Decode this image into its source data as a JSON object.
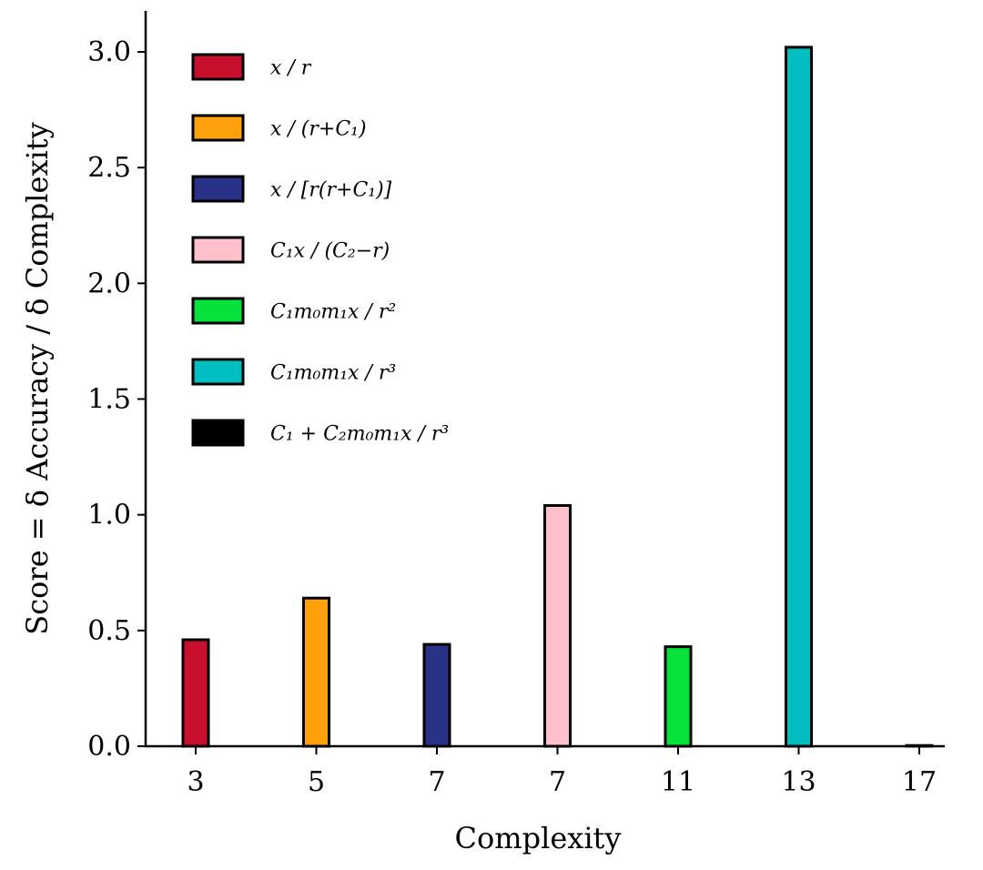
{
  "chart_data": {
    "type": "bar",
    "title": "",
    "xlabel": "Complexity",
    "ylabel": "Score = δ Accuracy / δ Complexity",
    "ylim": [
      0,
      3.15
    ],
    "yticks": [
      0.0,
      0.5,
      1.0,
      1.5,
      2.0,
      2.5,
      3.0
    ],
    "ytick_labels": [
      "0.0",
      "0.5",
      "1.0",
      "1.5",
      "2.0",
      "2.5",
      "3.0"
    ],
    "categories": [
      "3",
      "5",
      "7",
      "7",
      "11",
      "13",
      "17"
    ],
    "values": [
      0.46,
      0.64,
      0.44,
      1.04,
      0.43,
      3.02,
      0.0
    ],
    "colors": [
      "#c8102e",
      "#ffa10a",
      "#2a3189",
      "#ffc0cb",
      "#07e13b",
      "#01bfc0",
      "#000000"
    ],
    "legend": {
      "placement": "top-left",
      "entries": [
        {
          "label": "x / r",
          "color": "#c8102e"
        },
        {
          "label": "x / (r+C₁)",
          "color": "#ffa10a"
        },
        {
          "label": "x / [r(r+C₁)]",
          "color": "#2a3189"
        },
        {
          "label": "C₁x / (C₂−r)",
          "color": "#ffc0cb"
        },
        {
          "label": "C₁m₀m₁x / r²",
          "color": "#07e13b"
        },
        {
          "label": "C₁m₀m₁x / r³",
          "color": "#01bfc0"
        },
        {
          "label": "C₁ + C₂m₀m₁x / r³",
          "color": "#000000"
        }
      ]
    },
    "grid": false
  }
}
